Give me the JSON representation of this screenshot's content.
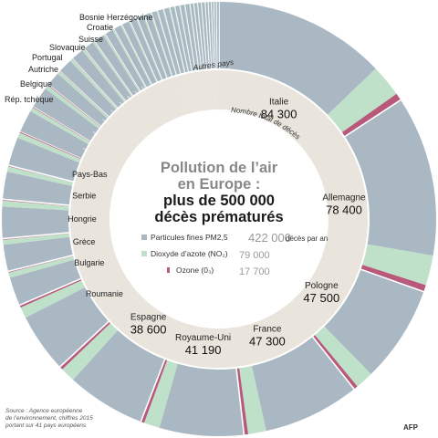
{
  "chart_data": {
    "type": "pie",
    "title_line1": "Pollution de l’air",
    "title_line2": "en Europe :",
    "subtitle_line1": "plus de 500 000",
    "subtitle_line2": "décès prématurés",
    "inner_ring_label": "Nombre total de décès",
    "others_label": "Autres pays",
    "unit_label": "décès par an",
    "pollutants": [
      {
        "name": "Particules fines PM2,5",
        "value_text": "422 000",
        "value": 422000,
        "color": "#aab8c4"
      },
      {
        "name": "Dioxyde d’azote (NO₂)",
        "value_text": "79 000",
        "value": 79000,
        "color": "#bfe0c9"
      },
      {
        "name": "Ozone (0₃)",
        "value_text": "17 700",
        "value": 17700,
        "color": "#b8587a"
      }
    ],
    "countries": [
      {
        "name": "Italie",
        "value": 84300,
        "value_text": "84 300",
        "shown": true
      },
      {
        "name": "Allemagne",
        "value": 78400,
        "value_text": "78 400",
        "shown": true
      },
      {
        "name": "Pologne",
        "value": 47500,
        "value_text": "47 500",
        "shown": true
      },
      {
        "name": "France",
        "value": 47300,
        "value_text": "47 300",
        "shown": true
      },
      {
        "name": "Royaume-Uni",
        "value": 41190,
        "value_text": "41 190",
        "shown": true
      },
      {
        "name": "Espagne",
        "value": 38600,
        "value_text": "38 600",
        "shown": true
      },
      {
        "name": "Roumanie",
        "value": 29000,
        "value_text": "",
        "shown": false
      },
      {
        "name": "Bulgarie",
        "value": 14000,
        "value_text": "",
        "shown": false
      },
      {
        "name": "Grèce",
        "value": 13000,
        "value_text": "",
        "shown": false
      },
      {
        "name": "Hongrie",
        "value": 15500,
        "value_text": "",
        "shown": false
      },
      {
        "name": "Serbie",
        "value": 13500,
        "value_text": "",
        "shown": false
      },
      {
        "name": "Pays-Bas",
        "value": 14000,
        "value_text": "",
        "shown": false
      }
    ],
    "other_countries": [
      {
        "name": "Rép. tchèque",
        "value": 11000
      },
      {
        "name": "Belgique",
        "value": 10500
      },
      {
        "name": "Autriche",
        "value": 7000
      },
      {
        "name": "Portugal",
        "value": 7000
      },
      {
        "name": "Slovaquie",
        "value": 6000
      },
      {
        "name": "Suisse",
        "value": 5000
      },
      {
        "name": "Croatie",
        "value": 5000
      },
      {
        "name": "Bosnie Herzégovine",
        "value": 4000
      },
      {
        "name": "",
        "value": 3500
      },
      {
        "name": "",
        "value": 3500
      },
      {
        "name": "",
        "value": 3000
      },
      {
        "name": "",
        "value": 3000
      },
      {
        "name": "",
        "value": 3000
      },
      {
        "name": "",
        "value": 2500
      },
      {
        "name": "",
        "value": 2500
      },
      {
        "name": "",
        "value": 2500
      },
      {
        "name": "",
        "value": 2000
      },
      {
        "name": "",
        "value": 2000
      },
      {
        "name": "",
        "value": 2000
      },
      {
        "name": "",
        "value": 2000
      },
      {
        "name": "",
        "value": 1500
      },
      {
        "name": "",
        "value": 1500
      },
      {
        "name": "",
        "value": 1500
      },
      {
        "name": "",
        "value": 1500
      },
      {
        "name": "",
        "value": 1200
      },
      {
        "name": "",
        "value": 1200
      },
      {
        "name": "",
        "value": 1000
      },
      {
        "name": "",
        "value": 1000
      },
      {
        "name": "",
        "value": 1000
      }
    ],
    "colors": {
      "inner_ring": "#e9e4dc",
      "separator": "#ffffff",
      "text": "#222222"
    }
  },
  "footer": {
    "source_line1": "Source : Agence européenne",
    "source_line2": "de l’environnement, chiffres 2015",
    "source_line3": "portant sur 41 pays européens",
    "credit": "AFP"
  }
}
